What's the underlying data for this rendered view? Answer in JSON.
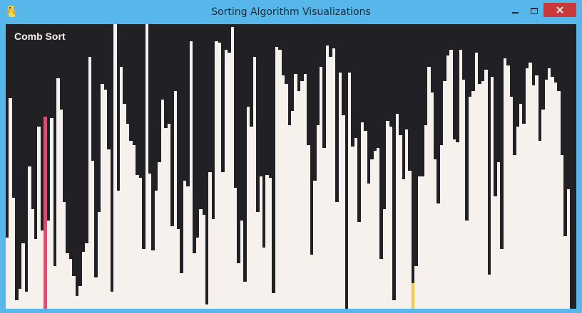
{
  "window": {
    "title": "Sorting Algorithm Visualizations",
    "icon": "python-snake-icon",
    "controls": [
      "minimize-icon",
      "maximize-icon",
      "close-icon"
    ]
  },
  "visualization": {
    "algorithm": "Comb Sort",
    "value_max": 400,
    "values": [
      100,
      296,
      156,
      12,
      28,
      92,
      24,
      200,
      140,
      98,
      256,
      110,
      270,
      124,
      268,
      60,
      324,
      280,
      150,
      78,
      70,
      46,
      18,
      32,
      80,
      92,
      354,
      208,
      44,
      136,
      316,
      308,
      224,
      24,
      400,
      166,
      340,
      288,
      260,
      236,
      230,
      188,
      184,
      84,
      400,
      190,
      82,
      166,
      206,
      294,
      254,
      260,
      116,
      306,
      112,
      50,
      180,
      172,
      376,
      78,
      100,
      140,
      132,
      6,
      192,
      126,
      376,
      374,
      192,
      364,
      360,
      396,
      170,
      64,
      124,
      38,
      284,
      256,
      354,
      136,
      186,
      86,
      188,
      184,
      22,
      368,
      364,
      328,
      316,
      258,
      278,
      330,
      306,
      320,
      330,
      230,
      76,
      180,
      258,
      340,
      226,
      370,
      354,
      366,
      150,
      332,
      272,
      0,
      332,
      228,
      240,
      122,
      262,
      250,
      176,
      210,
      222,
      226,
      70,
      140,
      264,
      256,
      12,
      274,
      244,
      182,
      252,
      194,
      36,
      60,
      186,
      186,
      258,
      340,
      304,
      210,
      148,
      230,
      320,
      356,
      364,
      238,
      234,
      364,
      322,
      124,
      298,
      306,
      360,
      316,
      320,
      336,
      48,
      326,
      158,
      206,
      84,
      352,
      342,
      298,
      216,
      256,
      288,
      260,
      338,
      346,
      314,
      328,
      236,
      280,
      322,
      338,
      326,
      318,
      306,
      216,
      102,
      168,
      0,
      0
    ],
    "colors": {
      "background": "#212125",
      "bar": "#f6f1ec",
      "compare": "#f5c453",
      "swap": "#f0456e"
    },
    "highlights": [
      {
        "index": 12,
        "role": "swap"
      },
      {
        "index": 128,
        "role": "compare"
      }
    ]
  }
}
